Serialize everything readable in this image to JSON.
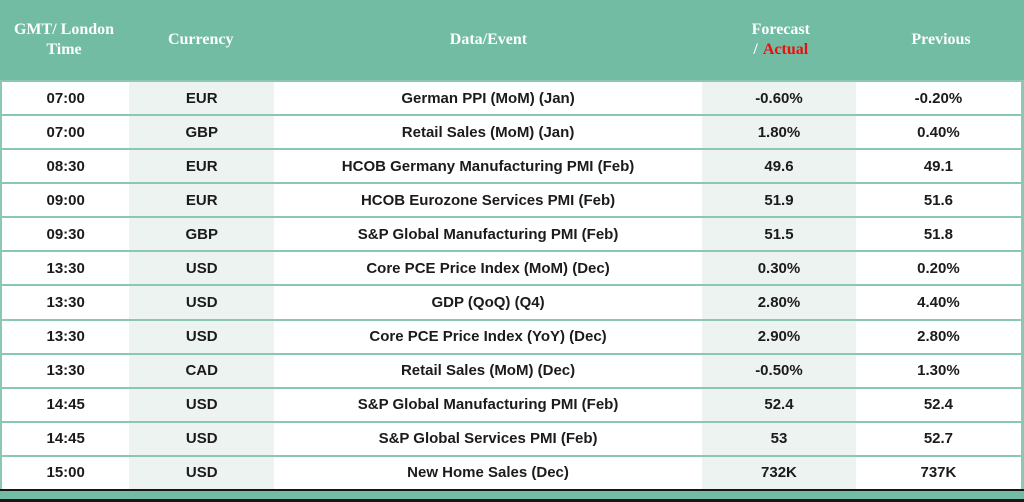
{
  "colors": {
    "header-bg": "#72bca4",
    "separator": "#8bc7b2",
    "shade": "#edf3f0",
    "text-dark": "#1b1b1b",
    "header-text": "#fdfdfd",
    "actual-red": "#ee0d0d",
    "bottom-line": "#161616"
  },
  "header": {
    "time": "GMT/ London Time",
    "currency": "Currency",
    "event": "Data/Event",
    "forecast_line1": "Forecast",
    "forecast_slash": "/",
    "forecast_actual": "Actual",
    "previous": "Previous"
  },
  "table": {
    "rows": [
      {
        "time": "07:00",
        "currency": "EUR",
        "event": "German PPI (MoM) (Jan)",
        "forecast": "-0.60%",
        "previous": "-0.20%"
      },
      {
        "time": "07:00",
        "currency": "GBP",
        "event": "Retail Sales (MoM) (Jan)",
        "forecast": "1.80%",
        "previous": "0.40%"
      },
      {
        "time": "08:30",
        "currency": "EUR",
        "event": "HCOB Germany Manufacturing PMI (Feb)",
        "forecast": "49.6",
        "previous": "49.1"
      },
      {
        "time": "09:00",
        "currency": "EUR",
        "event": "HCOB Eurozone Services PMI (Feb)",
        "forecast": "51.9",
        "previous": "51.6"
      },
      {
        "time": "09:30",
        "currency": "GBP",
        "event": "S&P Global Manufacturing PMI (Feb)",
        "forecast": "51.5",
        "previous": "51.8"
      },
      {
        "time": "13:30",
        "currency": "USD",
        "event": "Core PCE Price Index (MoM) (Dec)",
        "forecast": "0.30%",
        "previous": "0.20%"
      },
      {
        "time": "13:30",
        "currency": "USD",
        "event": "GDP (QoQ) (Q4)",
        "forecast": "2.80%",
        "previous": "4.40%"
      },
      {
        "time": "13:30",
        "currency": "USD",
        "event": "Core PCE Price Index (YoY) (Dec)",
        "forecast": "2.90%",
        "previous": "2.80%"
      },
      {
        "time": "13:30",
        "currency": "CAD",
        "event": "Retail Sales (MoM) (Dec)",
        "forecast": "-0.50%",
        "previous": "1.30%"
      },
      {
        "time": "14:45",
        "currency": "USD",
        "event": "S&P Global Manufacturing PMI (Feb)",
        "forecast": "52.4",
        "previous": "52.4"
      },
      {
        "time": "14:45",
        "currency": "USD",
        "event": "S&P Global Services PMI (Feb)",
        "forecast": "53",
        "previous": "52.7"
      },
      {
        "time": "15:00",
        "currency": "USD",
        "event": "New Home Sales (Dec)",
        "forecast": "732K",
        "previous": "737K"
      }
    ]
  }
}
